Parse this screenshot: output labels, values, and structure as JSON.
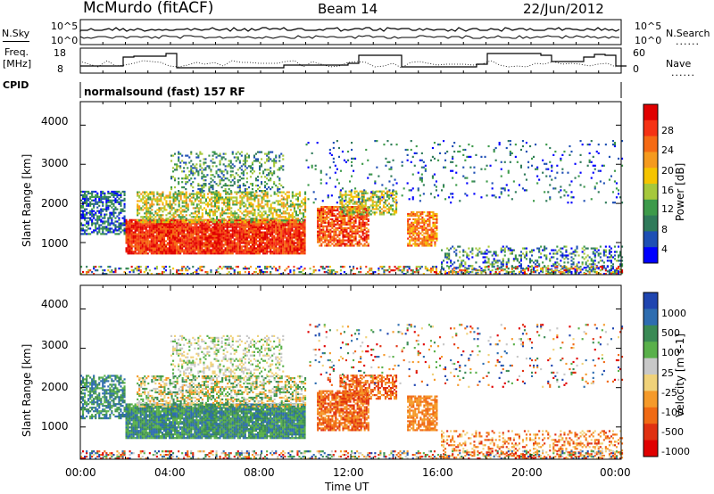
{
  "header": {
    "station": "McMurdo (fitACF)",
    "beam": "Beam 14",
    "date": "22/Jun/2012"
  },
  "small_panels": {
    "nsky_label": "N.Sky",
    "nsky_ticks": [
      "10^5",
      "10^0"
    ],
    "nsearch_label": "N.Search",
    "nsearch_ticks": [
      "10^5",
      "10^0"
    ],
    "freq_label": "Freq.",
    "freq_unit": "[MHz]",
    "freq_ticks": [
      "18",
      "8"
    ],
    "nave_label": "Nave",
    "nave_ticks": [
      "60",
      "0"
    ],
    "dots": "......",
    "cpid_label": "CPID",
    "mode": "normalsound (fast) 157 RF"
  },
  "x_axis": {
    "label": "Time UT",
    "ticks": [
      "00:00",
      "04:00",
      "08:00",
      "12:00",
      "16:00",
      "20:00",
      "00:00"
    ]
  },
  "colors": {
    "power_scale": [
      "#0000ff",
      "#1e4fb4",
      "#2f7a5a",
      "#3d9a4a",
      "#a6c83c",
      "#f5c400",
      "#f59a1e",
      "#f56a14",
      "#f53214",
      "#e00000"
    ],
    "velocity_scale": [
      "#1f45b0",
      "#2e6db0",
      "#3a8a55",
      "#59b04a",
      "#c8c8c8",
      "#f0d27a",
      "#f59a2a",
      "#f06a14",
      "#e03010",
      "#e00000"
    ]
  },
  "chart_data": [
    {
      "type": "line",
      "title": "N.Sky / N.Search",
      "x_range_hours": [
        0,
        24
      ],
      "ylim": [
        1,
        100000
      ],
      "y_scale": "log",
      "y_ticks_left": [
        "10^5",
        "10^0"
      ],
      "y_ticks_right": [
        "10^5",
        "10^0"
      ],
      "grid": false
    },
    {
      "type": "line",
      "title": "Freq. / Nave",
      "x_range_hours": [
        0,
        24
      ],
      "series": [
        {
          "name": "Freq.",
          "unit": "MHz",
          "ylim": [
            8,
            18
          ]
        },
        {
          "name": "Nave",
          "ylim": [
            0,
            60
          ]
        }
      ],
      "grid": false
    },
    {
      "type": "heatmap",
      "xlabel": "Time UT",
      "ylabel": "Slant Range [km]",
      "x_ticks": [
        "00:00",
        "04:00",
        "08:00",
        "12:00",
        "16:00",
        "20:00",
        "00:00"
      ],
      "x_range_hours": [
        0,
        24
      ],
      "y_ticks": [
        1000,
        2000,
        3000,
        4000
      ],
      "ylim": [
        180,
        4600
      ],
      "colorbar": {
        "label": "Power [dB]",
        "ticks": [
          4,
          8,
          12,
          16,
          20,
          24,
          28
        ],
        "range": [
          0,
          30
        ]
      }
    },
    {
      "type": "heatmap",
      "xlabel": "Time UT",
      "ylabel": "Slant Range [km]",
      "x_ticks": [
        "00:00",
        "04:00",
        "08:00",
        "12:00",
        "16:00",
        "20:00",
        "00:00"
      ],
      "x_range_hours": [
        0,
        24
      ],
      "y_ticks": [
        1000,
        2000,
        3000,
        4000
      ],
      "ylim": [
        180,
        4600
      ],
      "colorbar": {
        "label": "Velocity [m s-1]",
        "ticks": [
          "1000",
          "500",
          "100",
          "25",
          "-25",
          "-100",
          "-500",
          "-1000"
        ],
        "range": [
          -1000,
          1000
        ]
      }
    }
  ]
}
